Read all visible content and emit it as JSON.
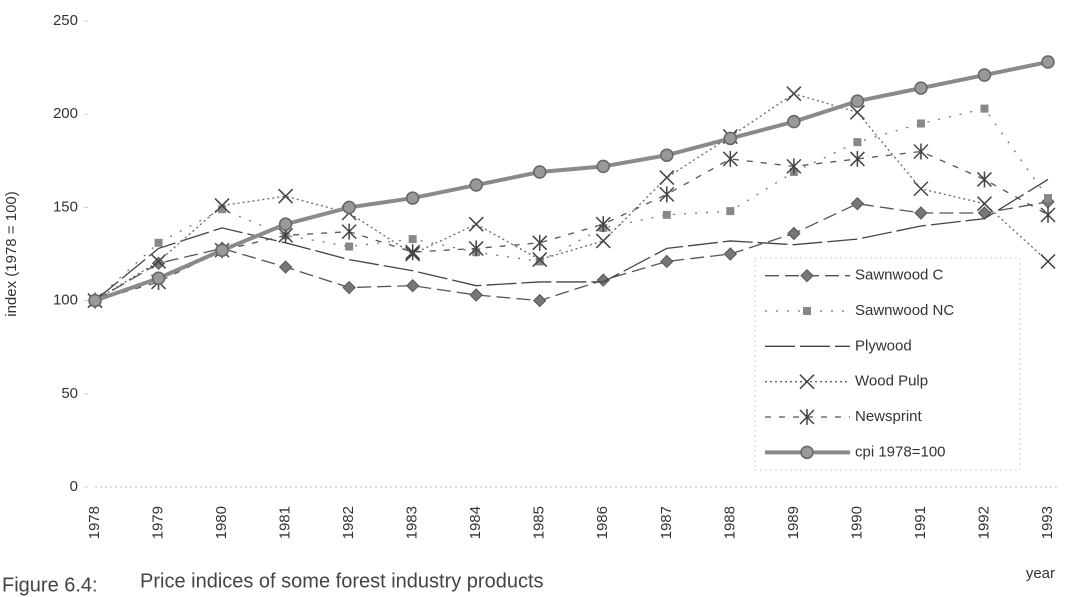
{
  "chart_data": {
    "type": "line",
    "figure_label": "Figure 6.4:",
    "title": "Price indices of some forest industry products",
    "y_label": "index (1978 = 100)",
    "x_label": "year",
    "categories": [
      "1978",
      "1979",
      "1980",
      "1981",
      "1982",
      "1983",
      "1984",
      "1985",
      "1986",
      "1987",
      "1988",
      "1989",
      "1990",
      "1991",
      "1992",
      "1993"
    ],
    "ylim": [
      0,
      250
    ],
    "yticks": [
      0,
      50,
      100,
      150,
      200,
      250
    ],
    "grid": false,
    "legend": "lower right",
    "series": [
      {
        "name": "Sawnwood C",
        "color": "#555555",
        "dash": "14,6",
        "marker": "diamond",
        "values": [
          100,
          120,
          128,
          118,
          107,
          108,
          103,
          100,
          111,
          121,
          125,
          136,
          152,
          147,
          147,
          153
        ]
      },
      {
        "name": "Sawnwood NC",
        "color": "#777777",
        "dash": "2,9",
        "marker": "square",
        "values": [
          100,
          131,
          149,
          135,
          129,
          133,
          126,
          121,
          139,
          146,
          148,
          169,
          185,
          195,
          203,
          155
        ]
      },
      {
        "name": "Plywood",
        "color": "#444444",
        "dash": "30,5",
        "marker": "none",
        "values": [
          100,
          128,
          139,
          131,
          122,
          116,
          108,
          110,
          110,
          128,
          132,
          130,
          133,
          140,
          144,
          165
        ]
      },
      {
        "name": "Wood Pulp",
        "color": "#666666",
        "dash": "2,3",
        "marker": "x",
        "values": [
          100,
          121,
          151,
          156,
          147,
          125,
          141,
          122,
          132,
          166,
          188,
          211,
          201,
          160,
          152,
          121
        ]
      },
      {
        "name": "Newsprint",
        "color": "#555555",
        "dash": "6,8",
        "marker": "star",
        "values": [
          100,
          110,
          127,
          135,
          137,
          126,
          128,
          131,
          141,
          157,
          176,
          172,
          176,
          180,
          165,
          146
        ]
      },
      {
        "name": "cpi 1978=100",
        "color": "#8a8a8a",
        "width": 4,
        "marker": "circle",
        "values": [
          100,
          112,
          127,
          141,
          150,
          155,
          162,
          169,
          172,
          178,
          187,
          196,
          207,
          214,
          221,
          228
        ]
      }
    ]
  }
}
